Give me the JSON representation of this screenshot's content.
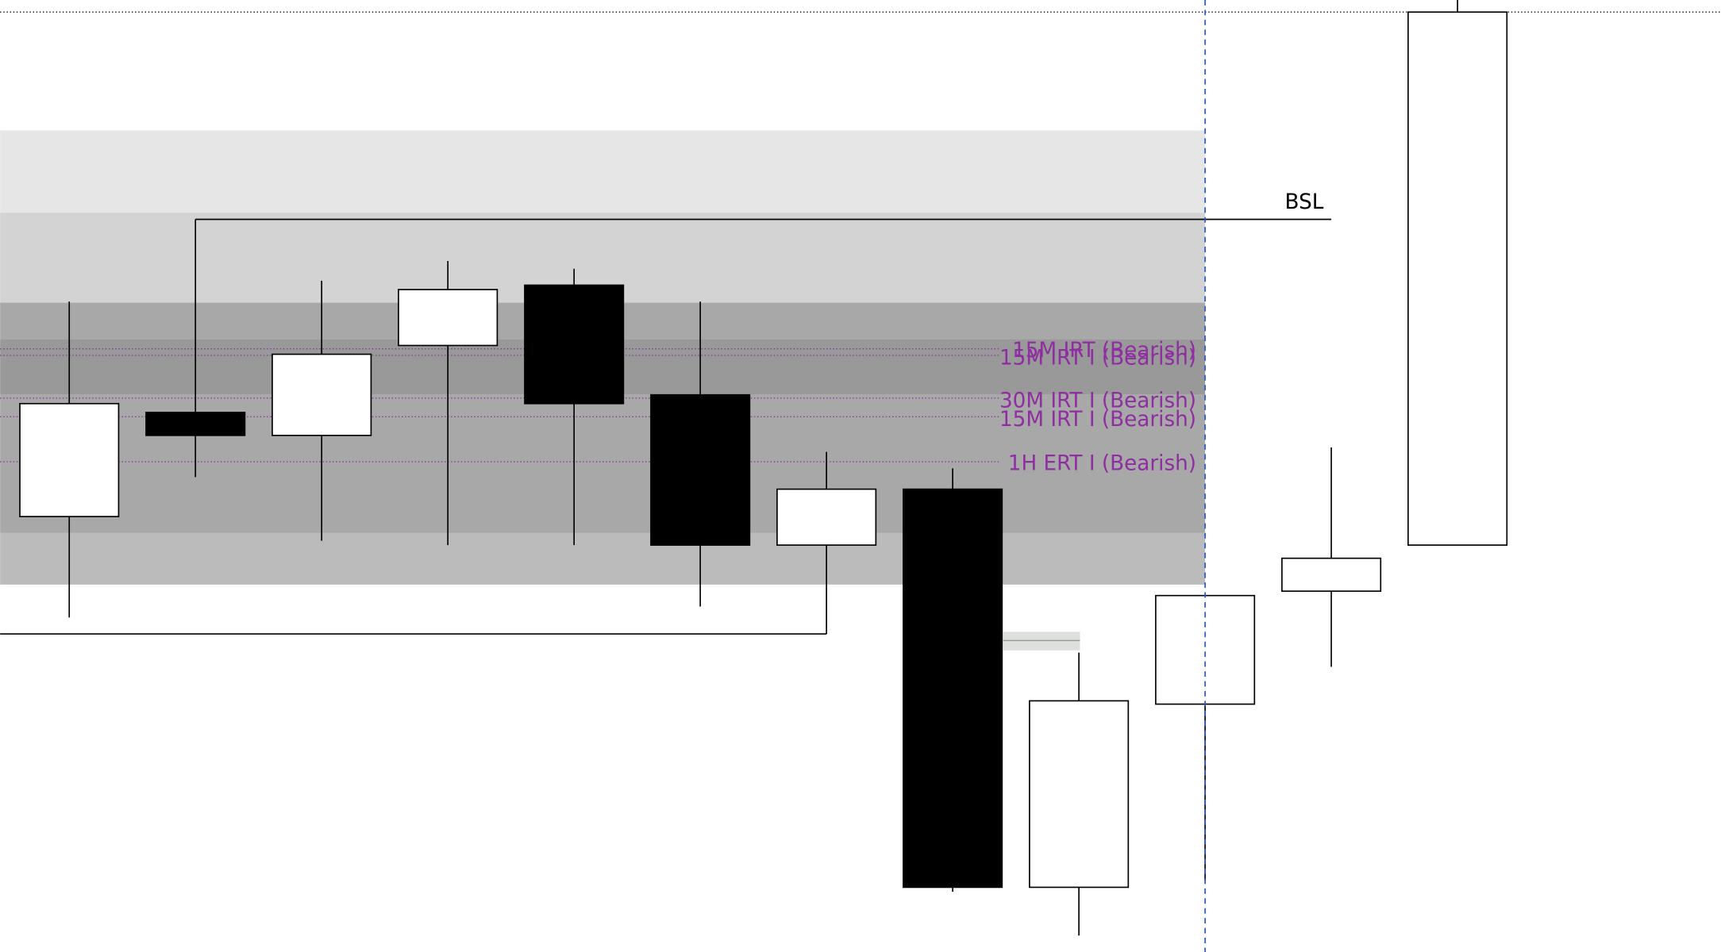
{
  "labels": {
    "bsl": "BSL",
    "levels": [
      "15M IRT (Bearish)",
      "15M IRT I (Bearish)",
      "30M IRT I (Bearish)",
      "15M IRT I (Bearish)",
      "1H ERT I (Bearish)"
    ]
  }
}
